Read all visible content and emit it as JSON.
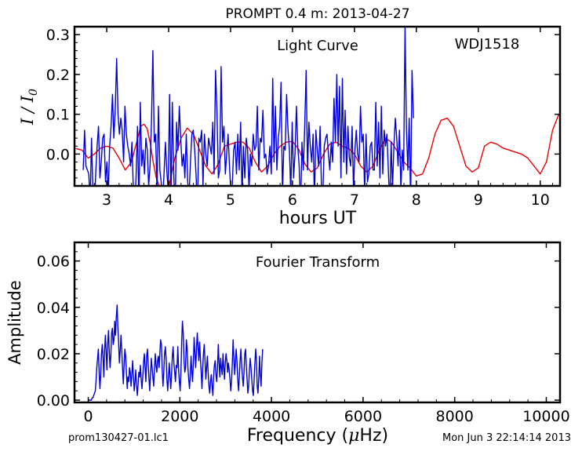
{
  "title": "PROMPT 0.4 m:  2013-04-27",
  "footer": {
    "left": "prom130427-01.lc1",
    "right": "Mon Jun  3 22:14:14 2013"
  },
  "chart_data": [
    {
      "type": "line",
      "annotation": "Light Curve",
      "target": "WDJ1518",
      "xlabel": "hours UT",
      "ylabel_base": "I / I",
      "ylabel_sub": "0",
      "xlim": [
        2.48,
        10.32
      ],
      "ylim": [
        -0.08,
        0.32
      ],
      "xticks": [
        3,
        4,
        5,
        6,
        7,
        8,
        9,
        10
      ],
      "yticks": [
        0.0,
        0.1,
        0.2,
        0.3
      ],
      "ytick_labels": [
        "0.0",
        "0.1",
        "0.2",
        "0.3"
      ],
      "colors": {
        "data": "#0000dd",
        "fit": "#ee0000"
      },
      "series": [
        {
          "role": "data",
          "x_start": 2.62,
          "x_step": 0.0225,
          "values": [
            -0.04,
            0.06,
            -0.03,
            -0.04,
            -0.05,
            -0.12,
            0.04,
            -0.1,
            -0.15,
            -0.05,
            0.02,
            0.07,
            -0.06,
            -0.02,
            0.04,
            0.05,
            -0.07,
            -0.02,
            -0.1,
            0.02,
            0.07,
            0.15,
            0.04,
            0.11,
            0.24,
            0.1,
            0.05,
            0.09,
            0.06,
            -0.02,
            0.12,
            0.05,
            0.02,
            0.0,
            -0.03,
            0.03,
            -0.09,
            -0.15,
            -0.05,
            0.07,
            -0.14,
            0.13,
            -0.03,
            0.01,
            -0.05,
            0.04,
            0.01,
            -0.08,
            -0.03,
            0.08,
            0.26,
            0.03,
            0.05,
            -0.1,
            0.12,
            -0.04,
            -0.07,
            -0.12,
            -0.05,
            0.03,
            -0.04,
            -0.09,
            0.15,
            -0.12,
            0.13,
            -0.05,
            -0.14,
            0.08,
            0.01,
            0.12,
            0.04,
            -0.03,
            0.0,
            -0.06,
            0.05,
            -0.07,
            -0.1,
            -0.02,
            0.05,
            0.06,
            0.01,
            -0.05,
            -0.14,
            0.04,
            0.03,
            0.06,
            -0.08,
            0.05,
            0.0,
            -0.03,
            0.04,
            0.02,
            0.0,
            0.08,
            -0.05,
            0.21,
            0.11,
            -0.06,
            -0.04,
            0.22,
            0.03,
            0.07,
            -0.05,
            0.0,
            0.05,
            -0.03,
            -0.1,
            -0.08,
            0.01,
            0.03,
            -0.05,
            0.05,
            -0.04,
            0.08,
            -0.11,
            0.02,
            -0.06,
            0.04,
            0.01,
            -0.09,
            0.0,
            -0.03,
            0.05,
            0.01,
            0.02,
            0.12,
            -0.04,
            0.04,
            0.03,
            0.11,
            -0.01,
            0.0,
            -0.05,
            -0.03,
            0.02,
            -0.05,
            0.19,
            -0.02,
            0.12,
            -0.04,
            0.04,
            0.07,
            0.18,
            -0.1,
            0.02,
            0.01,
            0.15,
            0.06,
            0.01,
            -0.1,
            0.08,
            -0.06,
            0.0,
            0.12,
            0.02,
            -0.03,
            -0.14,
            0.03,
            -0.04,
            0.07,
            0.21,
            -0.04,
            0.08,
            0.02,
            -0.02,
            0.05,
            -0.12,
            0.06,
            0.01,
            -0.03,
            0.07,
            -0.08,
            -0.1,
            0.02,
            0.04,
            0.05,
            0.0,
            -0.04,
            0.03,
            -0.02,
            0.14,
            0.03,
            0.2,
            0.02,
            0.17,
            -0.06,
            0.19,
            -0.02,
            0.11,
            -0.05,
            0.07,
            -0.01,
            -0.03,
            0.07,
            -0.09,
            0.01,
            0.06,
            0.0,
            -0.02,
            0.12,
            0.03,
            0.05,
            -0.1,
            0.05,
            -0.07,
            -0.05,
            0.02,
            0.03,
            -0.04,
            -0.04,
            0.13,
            -0.03,
            0.08,
            -0.06,
            0.12,
            -0.05,
            0.06,
            0.02,
            0.05,
            -0.04,
            -0.13,
            0.03,
            -0.09,
            0.02,
            0.09,
            0.04,
            -0.03,
            0.06,
            -0.09,
            0.01,
            -0.04,
            0.32,
            0.06,
            -0.04,
            0.09,
            -0.12,
            0.21,
            0.09
          ]
        },
        {
          "role": "fit",
          "x": [
            2.5,
            2.6,
            2.7,
            2.8,
            2.9,
            3.0,
            3.1,
            3.2,
            3.3,
            3.4,
            3.5,
            3.55,
            3.6,
            3.65,
            3.7,
            3.75,
            3.8,
            3.9,
            4.0,
            4.1,
            4.2,
            4.3,
            4.4,
            4.5,
            4.6,
            4.7,
            4.8,
            4.9,
            5.0,
            5.1,
            5.2,
            5.3,
            5.4,
            5.5,
            5.6,
            5.7,
            5.8,
            5.9,
            6.0,
            6.1,
            6.2,
            6.3,
            6.4,
            6.5,
            6.6,
            6.7,
            6.8,
            6.9,
            7.0,
            7.1,
            7.2,
            7.3,
            7.4,
            7.5,
            7.6,
            7.7,
            7.8,
            7.9,
            8.0,
            8.1,
            8.2,
            8.3,
            8.4,
            8.5,
            8.6,
            8.7,
            8.8,
            8.9,
            9.0,
            9.1,
            9.2,
            9.3,
            9.4,
            9.5,
            9.6,
            9.7,
            9.8,
            9.9,
            10.0,
            10.1,
            10.2,
            10.3
          ],
          "values": [
            0.014,
            0.01,
            -0.01,
            0.0,
            0.015,
            0.02,
            0.015,
            -0.01,
            -0.04,
            -0.02,
            0.04,
            0.07,
            0.075,
            0.065,
            0.03,
            -0.02,
            -0.06,
            -0.1,
            -0.085,
            -0.01,
            0.04,
            0.065,
            0.05,
            0.01,
            -0.03,
            -0.05,
            -0.025,
            0.02,
            0.025,
            0.03,
            0.03,
            0.015,
            -0.02,
            -0.045,
            -0.03,
            0.0,
            0.02,
            0.03,
            0.032,
            0.012,
            -0.025,
            -0.045,
            -0.035,
            0.0,
            0.025,
            0.03,
            0.02,
            0.015,
            0.0,
            -0.03,
            -0.045,
            -0.03,
            0.01,
            0.04,
            0.03,
            0.005,
            -0.02,
            -0.035,
            -0.055,
            -0.05,
            -0.01,
            0.05,
            0.085,
            0.09,
            0.07,
            0.02,
            -0.03,
            -0.045,
            -0.035,
            0.02,
            0.03,
            0.025,
            0.015,
            0.01,
            0.005,
            0.0,
            -0.01,
            -0.03,
            -0.05,
            -0.02,
            0.06,
            0.1
          ]
        }
      ]
    },
    {
      "type": "line",
      "annotation": "Fourier Transform",
      "xlabel_base": "Frequency (",
      "xlabel_mu": "μ",
      "xlabel_end": "Hz)",
      "ylabel": "Amplitude",
      "xlim": [
        -300,
        10300
      ],
      "ylim": [
        -0.001,
        0.068
      ],
      "xticks": [
        0,
        2000,
        4000,
        6000,
        8000,
        10000
      ],
      "yticks": [
        0.0,
        0.02,
        0.04,
        0.06
      ],
      "ytick_labels": [
        "0.00",
        "0.02",
        "0.04",
        "0.06"
      ],
      "colors": {
        "data": "#0000dd"
      },
      "series": [
        {
          "role": "amplitude",
          "x_start": 0,
          "x_step": 17,
          "values": [
            0.0,
            0.0,
            0.0,
            0.0,
            0.0,
            0.001,
            0.001,
            0.002,
            0.003,
            0.004,
            0.008,
            0.014,
            0.018,
            0.022,
            0.012,
            0.005,
            0.011,
            0.02,
            0.024,
            0.018,
            0.01,
            0.022,
            0.028,
            0.02,
            0.013,
            0.024,
            0.03,
            0.021,
            0.014,
            0.019,
            0.029,
            0.031,
            0.024,
            0.026,
            0.034,
            0.028,
            0.036,
            0.041,
            0.032,
            0.025,
            0.016,
            0.021,
            0.028,
            0.022,
            0.014,
            0.007,
            0.015,
            0.022,
            0.019,
            0.012,
            0.005,
            0.01,
            0.008,
            0.014,
            0.012,
            0.006,
            0.011,
            0.017,
            0.01,
            0.004,
            0.008,
            0.013,
            0.006,
            0.002,
            0.007,
            0.012,
            0.01,
            0.015,
            0.009,
            0.005,
            0.01,
            0.016,
            0.02,
            0.014,
            0.008,
            0.019,
            0.022,
            0.015,
            0.009,
            0.004,
            0.011,
            0.018,
            0.014,
            0.01,
            0.006,
            0.013,
            0.02,
            0.015,
            0.012,
            0.017,
            0.019,
            0.014,
            0.021,
            0.026,
            0.024,
            0.013,
            0.006,
            0.012,
            0.02,
            0.023,
            0.018,
            0.009,
            0.004,
            0.01,
            0.016,
            0.01,
            0.005,
            0.011,
            0.019,
            0.023,
            0.016,
            0.012,
            0.008,
            0.015,
            0.014,
            0.023,
            0.013,
            0.008,
            0.004,
            0.012,
            0.025,
            0.034,
            0.029,
            0.017,
            0.012,
            0.014,
            0.026,
            0.022,
            0.014,
            0.009,
            0.005,
            0.011,
            0.019,
            0.012,
            0.008,
            0.016,
            0.027,
            0.02,
            0.014,
            0.022,
            0.029,
            0.023,
            0.017,
            0.025,
            0.018,
            0.012,
            0.005,
            0.014,
            0.02,
            0.024,
            0.017,
            0.009,
            0.014,
            0.019,
            0.012,
            0.006,
            0.003,
            0.008,
            0.011,
            0.006,
            0.002,
            0.01,
            0.015,
            0.017,
            0.011,
            0.008,
            0.014,
            0.024,
            0.016,
            0.01,
            0.018,
            0.014,
            0.011,
            0.02,
            0.014,
            0.009,
            0.016,
            0.02,
            0.017,
            0.012,
            0.016,
            0.013,
            0.009,
            0.004,
            0.008,
            0.016,
            0.026,
            0.018,
            0.011,
            0.016,
            0.022,
            0.017,
            0.009,
            0.004,
            0.01,
            0.017,
            0.022,
            0.015,
            0.01,
            0.006,
            0.012,
            0.02,
            0.022,
            0.015,
            0.009,
            0.003,
            0.006,
            0.013,
            0.018,
            0.014,
            0.009,
            0.004,
            0.002,
            0.009,
            0.016,
            0.022,
            0.018,
            0.006,
            0.003,
            0.009,
            0.019,
            0.011,
            0.006,
            0.016,
            0.022
          ]
        }
      ]
    }
  ]
}
